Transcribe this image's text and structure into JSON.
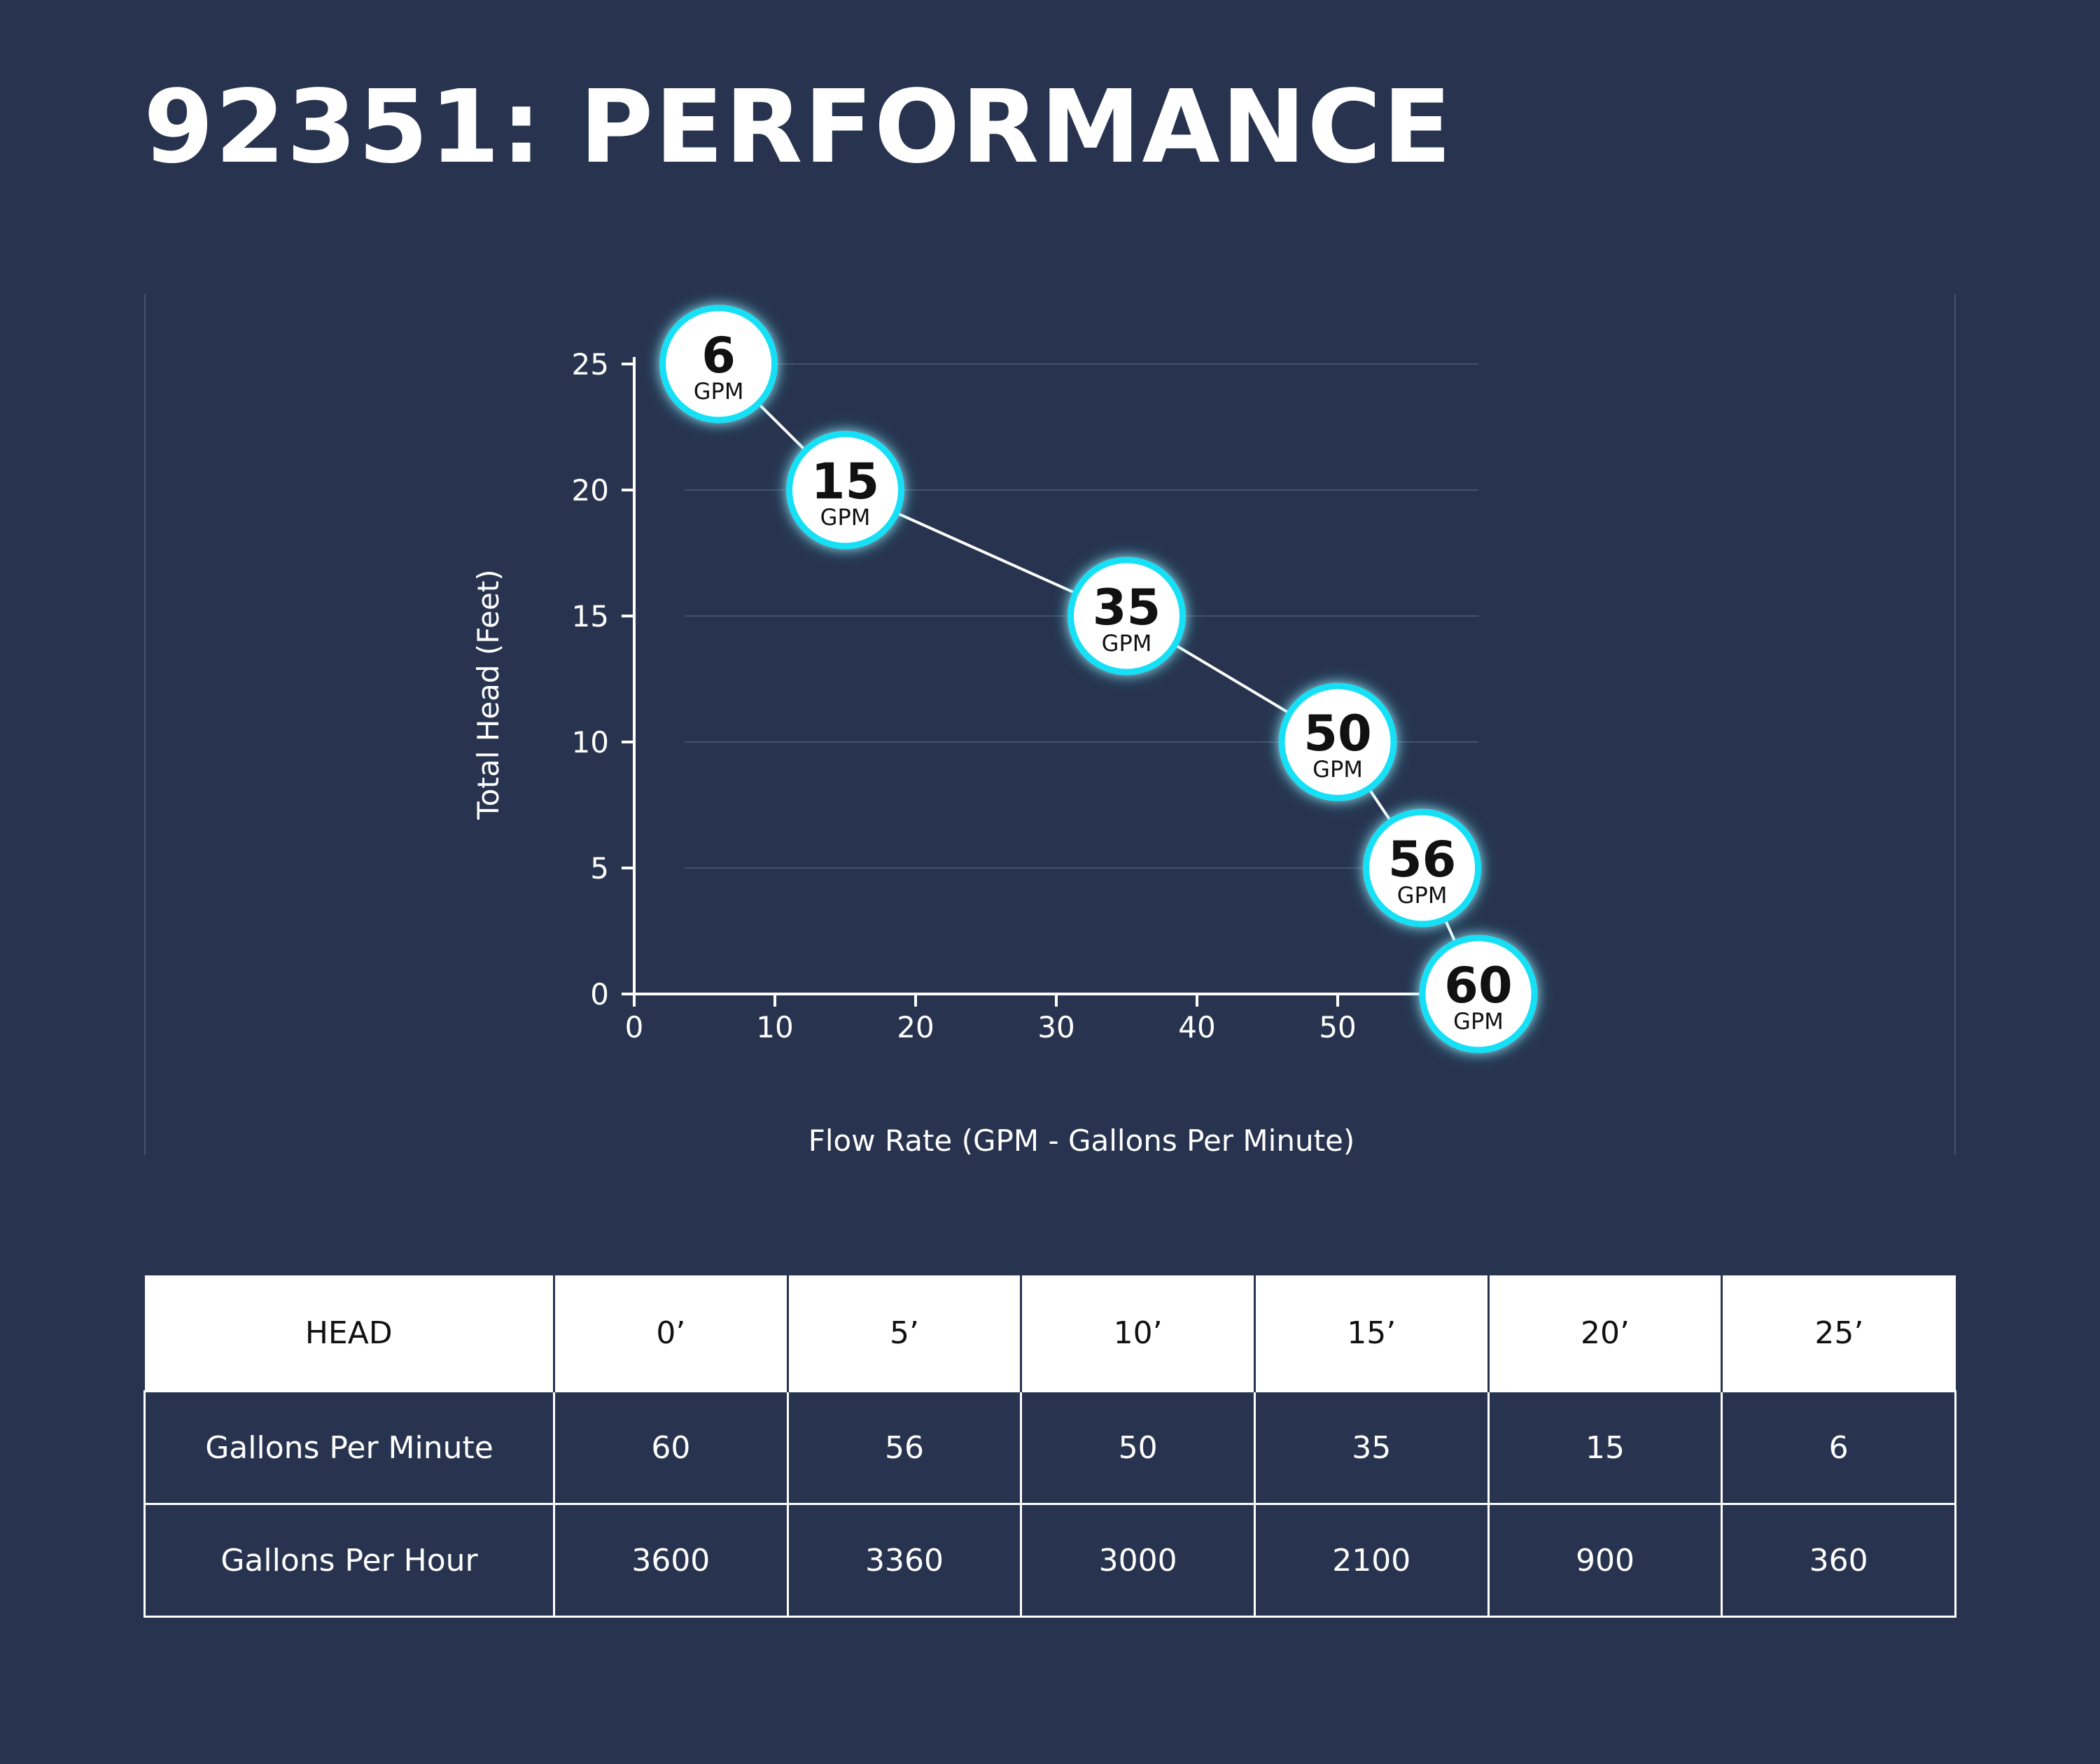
{
  "page": {
    "title": "92351: PERFORMANCE",
    "background_color": "#28344f",
    "accent_color": "#16e0f5"
  },
  "chart_data": {
    "type": "line",
    "xlabel": "Flow Rate (GPM - Gallons Per Minute)",
    "ylabel": "Total Head (Feet)",
    "xlim": [
      0,
      60
    ],
    "ylim": [
      0,
      25
    ],
    "x_ticks": [
      0,
      10,
      20,
      30,
      40,
      50
    ],
    "y_ticks": [
      0,
      5,
      10,
      15,
      20,
      25
    ],
    "grid": "horizontal",
    "series": [
      {
        "points": [
          {
            "x": 6,
            "y": 25,
            "label_value": "6",
            "label_unit": "GPM"
          },
          {
            "x": 15,
            "y": 20,
            "label_value": "15",
            "label_unit": "GPM"
          },
          {
            "x": 35,
            "y": 15,
            "label_value": "35",
            "label_unit": "GPM"
          },
          {
            "x": 50,
            "y": 10,
            "label_value": "50",
            "label_unit": "GPM"
          },
          {
            "x": 56,
            "y": 5,
            "label_value": "56",
            "label_unit": "GPM"
          },
          {
            "x": 60,
            "y": 0,
            "label_value": "60",
            "label_unit": "GPM"
          }
        ]
      }
    ]
  },
  "table": {
    "header": [
      "HEAD",
      "0’",
      "5’",
      "10’",
      "15’",
      "20’",
      "25’"
    ],
    "rows": [
      [
        "Gallons Per Minute",
        "60",
        "56",
        "50",
        "35",
        "15",
        "6"
      ],
      [
        "Gallons Per Hour",
        "3600",
        "3360",
        "3000",
        "2100",
        "900",
        "360"
      ]
    ]
  }
}
